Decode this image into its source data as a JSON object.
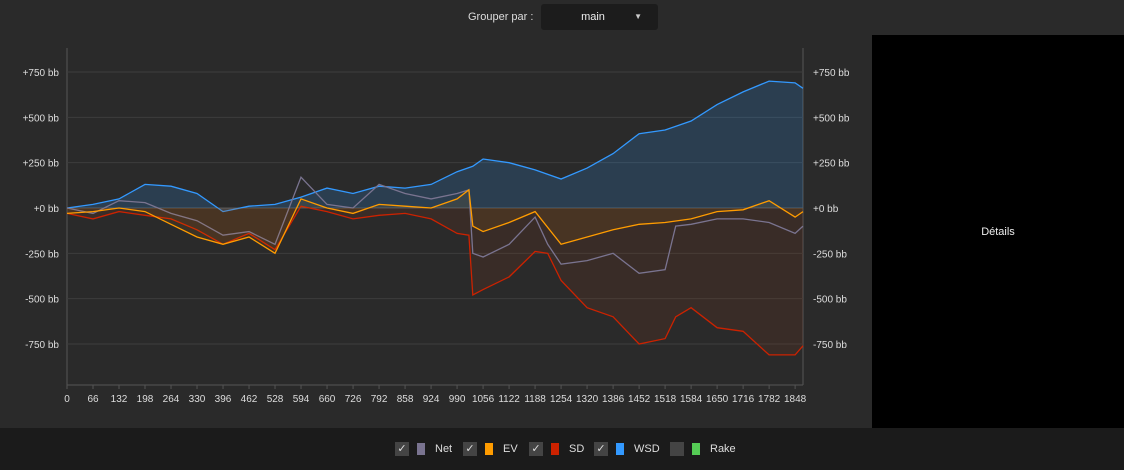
{
  "toolbar": {
    "group_label": "Grouper par :",
    "group_value": "main"
  },
  "details": {
    "label": "Détails"
  },
  "legend": [
    {
      "label": "Net",
      "color": "#7a7490",
      "checked": true
    },
    {
      "label": "EV",
      "color": "#ff9c00",
      "checked": true
    },
    {
      "label": "SD",
      "color": "#cc2200",
      "checked": true
    },
    {
      "label": "WSD",
      "color": "#3399ff",
      "checked": true
    },
    {
      "label": "Rake",
      "color": "#55cc55",
      "checked": false
    }
  ],
  "chart_data": {
    "type": "line",
    "xlabel": "",
    "ylabel": "",
    "xlim": [
      0,
      1868
    ],
    "ylim": [
      -950,
      950
    ],
    "xticks": [
      "0",
      "66",
      "132",
      "198",
      "264",
      "330",
      "396",
      "462",
      "528",
      "594",
      "660",
      "726",
      "792",
      "858",
      "924",
      "990",
      "1056",
      "1122",
      "1188",
      "1254",
      "1320",
      "1386",
      "1452",
      "1518",
      "1584",
      "1650",
      "1716",
      "1782",
      "1848"
    ],
    "yticks": [
      {
        "v": 750,
        "label": "+750 bb"
      },
      {
        "v": 500,
        "label": "+500 bb"
      },
      {
        "v": 250,
        "label": "+250 bb"
      },
      {
        "v": 0,
        "label": "+0 bb"
      },
      {
        "v": -250,
        "label": "-250 bb"
      },
      {
        "v": -500,
        "label": "-500 bb"
      },
      {
        "v": -750,
        "label": "-750 bb"
      }
    ],
    "series": [
      {
        "name": "WSD",
        "color": "#3399ff",
        "fill": "rgba(51,153,255,0.18)",
        "points": [
          [
            0,
            0
          ],
          [
            66,
            20
          ],
          [
            132,
            50
          ],
          [
            198,
            130
          ],
          [
            264,
            120
          ],
          [
            330,
            80
          ],
          [
            396,
            -20
          ],
          [
            462,
            10
          ],
          [
            528,
            20
          ],
          [
            594,
            60
          ],
          [
            660,
            110
          ],
          [
            726,
            80
          ],
          [
            792,
            120
          ],
          [
            858,
            110
          ],
          [
            924,
            130
          ],
          [
            990,
            200
          ],
          [
            1030,
            230
          ],
          [
            1056,
            270
          ],
          [
            1122,
            250
          ],
          [
            1188,
            210
          ],
          [
            1254,
            160
          ],
          [
            1320,
            220
          ],
          [
            1386,
            300
          ],
          [
            1452,
            410
          ],
          [
            1518,
            430
          ],
          [
            1584,
            480
          ],
          [
            1650,
            570
          ],
          [
            1716,
            640
          ],
          [
            1782,
            700
          ],
          [
            1848,
            690
          ],
          [
            1868,
            660
          ]
        ]
      },
      {
        "name": "SD",
        "color": "#cc2200",
        "fill": "rgba(150,60,30,0.15)",
        "points": [
          [
            0,
            -30
          ],
          [
            66,
            -60
          ],
          [
            132,
            -20
          ],
          [
            198,
            -40
          ],
          [
            264,
            -60
          ],
          [
            330,
            -120
          ],
          [
            396,
            -200
          ],
          [
            462,
            -140
          ],
          [
            528,
            -230
          ],
          [
            594,
            10
          ],
          [
            660,
            -20
          ],
          [
            726,
            -60
          ],
          [
            792,
            -40
          ],
          [
            858,
            -30
          ],
          [
            924,
            -60
          ],
          [
            990,
            -140
          ],
          [
            1020,
            -150
          ],
          [
            1030,
            -480
          ],
          [
            1056,
            -450
          ],
          [
            1122,
            -380
          ],
          [
            1188,
            -240
          ],
          [
            1220,
            -250
          ],
          [
            1254,
            -400
          ],
          [
            1320,
            -550
          ],
          [
            1386,
            -600
          ],
          [
            1452,
            -750
          ],
          [
            1518,
            -720
          ],
          [
            1545,
            -600
          ],
          [
            1584,
            -550
          ],
          [
            1650,
            -660
          ],
          [
            1716,
            -680
          ],
          [
            1782,
            -810
          ],
          [
            1848,
            -810
          ],
          [
            1868,
            -760
          ]
        ]
      },
      {
        "name": "Net",
        "color": "#7a7490",
        "fill": "",
        "points": [
          [
            0,
            0
          ],
          [
            66,
            -30
          ],
          [
            132,
            40
          ],
          [
            198,
            30
          ],
          [
            264,
            -30
          ],
          [
            330,
            -70
          ],
          [
            396,
            -150
          ],
          [
            462,
            -130
          ],
          [
            528,
            -200
          ],
          [
            594,
            170
          ],
          [
            660,
            20
          ],
          [
            726,
            0
          ],
          [
            792,
            130
          ],
          [
            858,
            80
          ],
          [
            924,
            50
          ],
          [
            990,
            80
          ],
          [
            1020,
            100
          ],
          [
            1030,
            -250
          ],
          [
            1056,
            -270
          ],
          [
            1122,
            -200
          ],
          [
            1188,
            -50
          ],
          [
            1220,
            -200
          ],
          [
            1254,
            -310
          ],
          [
            1320,
            -290
          ],
          [
            1386,
            -250
          ],
          [
            1452,
            -360
          ],
          [
            1518,
            -340
          ],
          [
            1545,
            -100
          ],
          [
            1584,
            -90
          ],
          [
            1650,
            -60
          ],
          [
            1716,
            -60
          ],
          [
            1782,
            -80
          ],
          [
            1848,
            -140
          ],
          [
            1868,
            -100
          ]
        ]
      },
      {
        "name": "EV",
        "color": "#ff9c00",
        "fill": "rgba(255,156,0,0.08)",
        "points": [
          [
            0,
            -30
          ],
          [
            66,
            -20
          ],
          [
            132,
            0
          ],
          [
            198,
            -20
          ],
          [
            264,
            -90
          ],
          [
            330,
            -160
          ],
          [
            396,
            -200
          ],
          [
            462,
            -160
          ],
          [
            528,
            -250
          ],
          [
            594,
            50
          ],
          [
            660,
            0
          ],
          [
            726,
            -30
          ],
          [
            792,
            20
          ],
          [
            858,
            10
          ],
          [
            924,
            0
          ],
          [
            990,
            50
          ],
          [
            1020,
            100
          ],
          [
            1030,
            -100
          ],
          [
            1056,
            -130
          ],
          [
            1122,
            -80
          ],
          [
            1188,
            -20
          ],
          [
            1254,
            -200
          ],
          [
            1320,
            -160
          ],
          [
            1386,
            -120
          ],
          [
            1452,
            -90
          ],
          [
            1518,
            -80
          ],
          [
            1584,
            -60
          ],
          [
            1650,
            -20
          ],
          [
            1716,
            -10
          ],
          [
            1782,
            40
          ],
          [
            1848,
            -50
          ],
          [
            1868,
            -20
          ]
        ]
      }
    ]
  }
}
